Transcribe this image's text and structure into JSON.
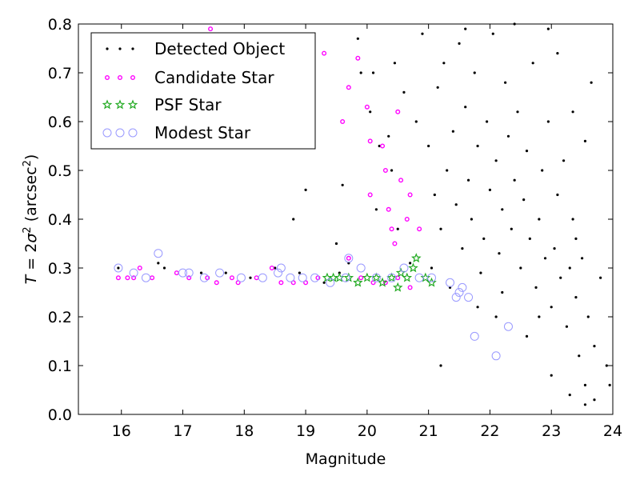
{
  "chart_data": {
    "type": "scatter",
    "xlabel": "Magnitude",
    "ylabel": "T = 2σ² (arcsec²)",
    "ylabel_parts": {
      "lhs": "T",
      "eq": " = 2",
      "sigma": "σ",
      "sq": "2",
      "unit_open": " (arcsec",
      "unit_close": ")"
    },
    "xlim": [
      15.3,
      24.0
    ],
    "ylim": [
      0.0,
      0.8
    ],
    "x_ticks": [
      16,
      17,
      18,
      19,
      20,
      21,
      22,
      23,
      24
    ],
    "x_tick_labels": [
      "16",
      "17",
      "18",
      "19",
      "20",
      "21",
      "22",
      "23",
      "24"
    ],
    "y_ticks": [
      0.0,
      0.1,
      0.2,
      0.3,
      0.4,
      0.5,
      0.6,
      0.7,
      0.8
    ],
    "y_tick_labels": [
      "0.0",
      "0.1",
      "0.2",
      "0.3",
      "0.4",
      "0.5",
      "0.6",
      "0.7",
      "0.8"
    ],
    "grid": false,
    "legend_position": "top-left",
    "series": [
      {
        "name": "Detected Object",
        "marker": "dot",
        "color": "#000000",
        "points": [
          [
            15.95,
            0.3
          ],
          [
            16.6,
            0.31
          ],
          [
            16.7,
            0.3
          ],
          [
            17.3,
            0.29
          ],
          [
            17.7,
            0.29
          ],
          [
            18.1,
            0.28
          ],
          [
            18.5,
            0.3
          ],
          [
            18.9,
            0.29
          ],
          [
            19.0,
            0.46
          ],
          [
            18.8,
            0.4
          ],
          [
            19.3,
            0.27
          ],
          [
            19.55,
            0.29
          ],
          [
            19.7,
            0.31
          ],
          [
            19.85,
            0.77
          ],
          [
            19.9,
            0.7
          ],
          [
            19.6,
            0.47
          ],
          [
            19.5,
            0.35
          ],
          [
            20.05,
            0.62
          ],
          [
            20.1,
            0.7
          ],
          [
            20.2,
            0.55
          ],
          [
            20.15,
            0.42
          ],
          [
            20.35,
            0.57
          ],
          [
            20.4,
            0.5
          ],
          [
            20.45,
            0.72
          ],
          [
            20.5,
            0.38
          ],
          [
            20.6,
            0.66
          ],
          [
            20.7,
            0.31
          ],
          [
            20.8,
            0.6
          ],
          [
            20.9,
            0.78
          ],
          [
            21.0,
            0.55
          ],
          [
            21.05,
            0.3
          ],
          [
            21.1,
            0.45
          ],
          [
            21.15,
            0.67
          ],
          [
            21.2,
            0.38
          ],
          [
            21.25,
            0.72
          ],
          [
            21.3,
            0.5
          ],
          [
            21.35,
            0.26
          ],
          [
            21.4,
            0.58
          ],
          [
            21.45,
            0.43
          ],
          [
            21.5,
            0.76
          ],
          [
            21.55,
            0.34
          ],
          [
            21.6,
            0.63
          ],
          [
            21.65,
            0.48
          ],
          [
            21.7,
            0.4
          ],
          [
            21.75,
            0.7
          ],
          [
            21.8,
            0.55
          ],
          [
            21.85,
            0.29
          ],
          [
            21.9,
            0.36
          ],
          [
            21.95,
            0.6
          ],
          [
            22.0,
            0.46
          ],
          [
            22.05,
            0.78
          ],
          [
            22.1,
            0.52
          ],
          [
            22.15,
            0.33
          ],
          [
            22.2,
            0.42
          ],
          [
            22.25,
            0.68
          ],
          [
            22.3,
            0.57
          ],
          [
            22.35,
            0.38
          ],
          [
            22.4,
            0.48
          ],
          [
            22.45,
            0.62
          ],
          [
            22.5,
            0.3
          ],
          [
            22.55,
            0.44
          ],
          [
            22.6,
            0.54
          ],
          [
            22.65,
            0.36
          ],
          [
            22.7,
            0.72
          ],
          [
            22.75,
            0.26
          ],
          [
            22.8,
            0.4
          ],
          [
            22.85,
            0.5
          ],
          [
            22.9,
            0.32
          ],
          [
            22.95,
            0.6
          ],
          [
            23.0,
            0.22
          ],
          [
            23.05,
            0.34
          ],
          [
            23.1,
            0.45
          ],
          [
            23.15,
            0.28
          ],
          [
            23.2,
            0.52
          ],
          [
            23.25,
            0.18
          ],
          [
            23.3,
            0.3
          ],
          [
            23.35,
            0.4
          ],
          [
            23.4,
            0.24
          ],
          [
            23.45,
            0.12
          ],
          [
            23.5,
            0.32
          ],
          [
            23.55,
            0.06
          ],
          [
            23.6,
            0.2
          ],
          [
            23.65,
            0.68
          ],
          [
            23.7,
            0.14
          ],
          [
            23.8,
            0.28
          ],
          [
            23.9,
            0.1
          ],
          [
            21.2,
            0.1
          ],
          [
            22.1,
            0.2
          ],
          [
            22.6,
            0.16
          ],
          [
            23.0,
            0.08
          ],
          [
            23.3,
            0.04
          ],
          [
            23.55,
            0.02
          ],
          [
            23.7,
            0.03
          ],
          [
            23.95,
            0.06
          ],
          [
            21.6,
            0.79
          ],
          [
            22.4,
            0.8
          ],
          [
            22.95,
            0.79
          ],
          [
            23.1,
            0.74
          ],
          [
            23.35,
            0.62
          ],
          [
            23.55,
            0.56
          ],
          [
            21.8,
            0.22
          ],
          [
            22.2,
            0.25
          ],
          [
            22.8,
            0.2
          ],
          [
            23.4,
            0.36
          ]
        ]
      },
      {
        "name": "Candidate Star",
        "marker": "small-ring",
        "color": "#ff00ff",
        "points": [
          [
            15.95,
            0.28
          ],
          [
            16.1,
            0.28
          ],
          [
            16.2,
            0.28
          ],
          [
            16.3,
            0.3
          ],
          [
            16.5,
            0.28
          ],
          [
            16.9,
            0.29
          ],
          [
            17.1,
            0.28
          ],
          [
            17.4,
            0.28
          ],
          [
            17.55,
            0.27
          ],
          [
            17.8,
            0.28
          ],
          [
            17.9,
            0.27
          ],
          [
            18.2,
            0.28
          ],
          [
            18.45,
            0.3
          ],
          [
            18.6,
            0.27
          ],
          [
            18.8,
            0.27
          ],
          [
            19.0,
            0.27
          ],
          [
            19.2,
            0.28
          ],
          [
            19.7,
            0.32
          ],
          [
            19.9,
            0.28
          ],
          [
            20.1,
            0.27
          ],
          [
            20.3,
            0.27
          ],
          [
            20.5,
            0.28
          ],
          [
            20.7,
            0.26
          ],
          [
            17.45,
            0.79
          ],
          [
            19.3,
            0.74
          ],
          [
            19.85,
            0.73
          ],
          [
            19.7,
            0.67
          ],
          [
            20.0,
            0.63
          ],
          [
            20.05,
            0.56
          ],
          [
            20.25,
            0.55
          ],
          [
            20.3,
            0.5
          ],
          [
            20.05,
            0.45
          ],
          [
            20.35,
            0.42
          ],
          [
            20.4,
            0.38
          ],
          [
            20.5,
            0.62
          ],
          [
            20.55,
            0.48
          ],
          [
            20.7,
            0.45
          ],
          [
            20.85,
            0.38
          ],
          [
            20.45,
            0.35
          ],
          [
            20.65,
            0.4
          ],
          [
            19.6,
            0.6
          ]
        ]
      },
      {
        "name": "PSF Star",
        "marker": "star",
        "color": "#22aa22",
        "points": [
          [
            19.35,
            0.28
          ],
          [
            19.45,
            0.28
          ],
          [
            19.55,
            0.28
          ],
          [
            19.7,
            0.28
          ],
          [
            19.85,
            0.27
          ],
          [
            20.0,
            0.28
          ],
          [
            20.15,
            0.28
          ],
          [
            20.25,
            0.27
          ],
          [
            20.4,
            0.28
          ],
          [
            20.55,
            0.29
          ],
          [
            20.65,
            0.28
          ],
          [
            20.75,
            0.3
          ],
          [
            20.8,
            0.32
          ],
          [
            20.95,
            0.28
          ],
          [
            21.05,
            0.27
          ],
          [
            20.5,
            0.26
          ]
        ]
      },
      {
        "name": "Modest Star",
        "marker": "large-ring",
        "color": "#9999ff",
        "points": [
          [
            15.95,
            0.3
          ],
          [
            16.4,
            0.28
          ],
          [
            16.6,
            0.33
          ],
          [
            17.0,
            0.29
          ],
          [
            17.35,
            0.28
          ],
          [
            17.6,
            0.29
          ],
          [
            17.95,
            0.28
          ],
          [
            18.3,
            0.28
          ],
          [
            18.55,
            0.29
          ],
          [
            18.75,
            0.28
          ],
          [
            18.95,
            0.28
          ],
          [
            19.15,
            0.28
          ],
          [
            19.4,
            0.27
          ],
          [
            19.65,
            0.28
          ],
          [
            19.9,
            0.3
          ],
          [
            20.15,
            0.28
          ],
          [
            20.4,
            0.28
          ],
          [
            20.6,
            0.3
          ],
          [
            20.85,
            0.28
          ],
          [
            21.05,
            0.28
          ],
          [
            21.35,
            0.27
          ],
          [
            21.45,
            0.24
          ],
          [
            21.5,
            0.25
          ],
          [
            21.55,
            0.26
          ],
          [
            21.65,
            0.24
          ],
          [
            21.75,
            0.16
          ],
          [
            22.1,
            0.12
          ],
          [
            22.3,
            0.18
          ],
          [
            19.7,
            0.32
          ],
          [
            18.6,
            0.3
          ],
          [
            17.1,
            0.29
          ],
          [
            16.2,
            0.29
          ]
        ]
      }
    ]
  }
}
